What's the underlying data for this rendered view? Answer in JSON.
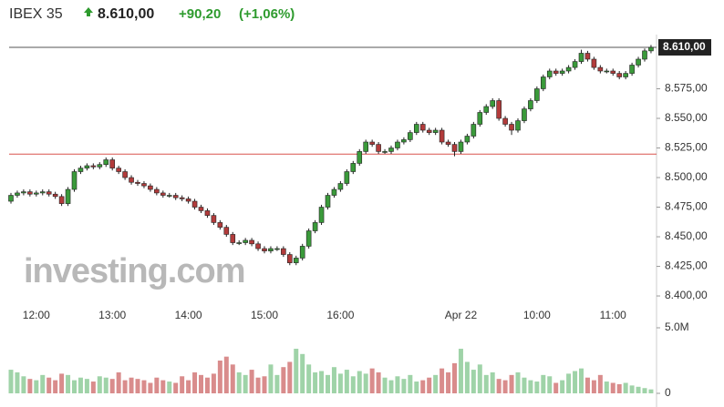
{
  "header": {
    "name": "IBEX 35",
    "change": "+90,20",
    "change_pct": "(+1,06%)"
  },
  "chart_data": {
    "type": "candlestick",
    "watermark": "investing.com",
    "up_color": "#3a9a3a",
    "down_color": "#b23b3b",
    "last_price": {
      "value": 8610,
      "label": "8.610,00"
    },
    "prev_close": 8519.8,
    "prev_close_color": "#d9534f",
    "categories": [
      null,
      null,
      null,
      null,
      "12:00",
      null,
      null,
      null,
      null,
      null,
      null,
      null,
      null,
      null,
      null,
      null,
      "13:00",
      null,
      null,
      null,
      null,
      null,
      null,
      null,
      null,
      null,
      null,
      null,
      "14:00",
      null,
      null,
      null,
      null,
      null,
      null,
      null,
      null,
      null,
      null,
      null,
      "15:00",
      null,
      null,
      null,
      null,
      null,
      null,
      null,
      null,
      null,
      null,
      null,
      "16:00",
      null,
      null,
      null,
      null,
      null,
      null,
      null,
      null,
      null,
      null,
      null,
      null,
      null,
      null,
      null,
      null,
      null,
      null,
      "Apr 22",
      null,
      null,
      null,
      null,
      null,
      null,
      null,
      null,
      null,
      null,
      null,
      "10:00",
      null,
      null,
      null,
      null,
      null,
      null,
      null,
      null,
      null,
      null,
      null,
      "11:00",
      null,
      null,
      null,
      null,
      null,
      null
    ],
    "open": [
      8480,
      8485,
      8487,
      8488,
      8486,
      8487,
      8488,
      8486,
      8484,
      8478,
      8490,
      8505,
      8508,
      8510,
      8509,
      8511,
      8515,
      8508,
      8505,
      8500,
      8496,
      8495,
      8493,
      8490,
      8487,
      8485,
      8485,
      8483,
      8482,
      8480,
      8475,
      8472,
      8468,
      8462,
      8458,
      8452,
      8445,
      8445,
      8447,
      8444,
      8440,
      8438,
      8440,
      8440,
      8435,
      8428,
      8432,
      8442,
      8455,
      8462,
      8475,
      8485,
      8490,
      8495,
      8505,
      8512,
      8522,
      8530,
      8528,
      8522,
      8522,
      8525,
      8530,
      8532,
      8538,
      8545,
      8540,
      8538,
      8540,
      8530,
      8528,
      8522,
      8530,
      8535,
      8545,
      8555,
      8560,
      8565,
      8550,
      8545,
      8540,
      8548,
      8558,
      8565,
      8575,
      8585,
      8590,
      8588,
      8590,
      8593,
      8598,
      8605,
      8600,
      8593,
      8590,
      8590,
      8588,
      8585,
      8588,
      8595,
      8600,
      8607
    ],
    "high": [
      8487,
      8489,
      8490,
      8490,
      8489,
      8490,
      8490,
      8488,
      8486,
      8492,
      8507,
      8510,
      8512,
      8512,
      8513,
      8517,
      8517,
      8510,
      8507,
      8502,
      8498,
      8497,
      8495,
      8492,
      8489,
      8487,
      8487,
      8485,
      8484,
      8482,
      8477,
      8474,
      8470,
      8464,
      8460,
      8454,
      8447,
      8449,
      8449,
      8446,
      8442,
      8442,
      8442,
      8442,
      8437,
      8434,
      8444,
      8457,
      8464,
      8477,
      8487,
      8492,
      8497,
      8507,
      8514,
      8524,
      8532,
      8532,
      8530,
      8524,
      8527,
      8532,
      8534,
      8540,
      8547,
      8547,
      8542,
      8542,
      8542,
      8532,
      8530,
      8532,
      8537,
      8547,
      8557,
      8562,
      8567,
      8567,
      8552,
      8547,
      8550,
      8560,
      8567,
      8577,
      8587,
      8592,
      8592,
      8592,
      8595,
      8600,
      8608,
      8607,
      8602,
      8595,
      8592,
      8592,
      8590,
      8590,
      8597,
      8602,
      8609,
      8612
    ],
    "low": [
      8478,
      8483,
      8485,
      8484,
      8484,
      8485,
      8484,
      8482,
      8476,
      8476,
      8488,
      8503,
      8506,
      8507,
      8507,
      8509,
      8506,
      8503,
      8498,
      8494,
      8493,
      8491,
      8488,
      8485,
      8483,
      8483,
      8481,
      8480,
      8478,
      8473,
      8470,
      8466,
      8460,
      8456,
      8450,
      8443,
      8443,
      8443,
      8442,
      8438,
      8436,
      8436,
      8438,
      8433,
      8426,
      8426,
      8430,
      8440,
      8453,
      8460,
      8473,
      8483,
      8488,
      8493,
      8503,
      8510,
      8520,
      8526,
      8520,
      8520,
      8520,
      8523,
      8528,
      8530,
      8536,
      8538,
      8536,
      8536,
      8528,
      8526,
      8518,
      8520,
      8528,
      8533,
      8543,
      8553,
      8558,
      8548,
      8543,
      8536,
      8538,
      8546,
      8556,
      8563,
      8573,
      8583,
      8586,
      8586,
      8588,
      8591,
      8596,
      8598,
      8591,
      8588,
      8588,
      8586,
      8583,
      8583,
      8586,
      8593,
      8598,
      8605
    ],
    "close": [
      8485,
      8487,
      8488,
      8486,
      8487,
      8488,
      8486,
      8484,
      8478,
      8490,
      8505,
      8508,
      8510,
      8509,
      8511,
      8515,
      8508,
      8505,
      8500,
      8496,
      8495,
      8493,
      8490,
      8487,
      8485,
      8485,
      8483,
      8482,
      8480,
      8475,
      8472,
      8468,
      8462,
      8458,
      8452,
      8445,
      8445,
      8447,
      8444,
      8440,
      8438,
      8440,
      8440,
      8435,
      8428,
      8432,
      8442,
      8455,
      8462,
      8475,
      8485,
      8490,
      8495,
      8505,
      8512,
      8522,
      8530,
      8528,
      8522,
      8522,
      8525,
      8530,
      8532,
      8538,
      8545,
      8540,
      8538,
      8540,
      8530,
      8528,
      8522,
      8530,
      8535,
      8545,
      8555,
      8560,
      8565,
      8550,
      8545,
      8540,
      8548,
      8558,
      8565,
      8575,
      8585,
      8590,
      8588,
      8590,
      8593,
      8598,
      8605,
      8600,
      8593,
      8590,
      8590,
      8588,
      8585,
      8588,
      8595,
      8600,
      8607,
      8610
    ],
    "ylim": [
      8388.5,
      8614.6
    ],
    "yticks": [
      {
        "value": 8400,
        "label": "8.400,00"
      },
      {
        "value": 8425,
        "label": "8.425,00"
      },
      {
        "value": 8450,
        "label": "8.450,00"
      },
      {
        "value": 8475,
        "label": "8.475,00"
      },
      {
        "value": 8500,
        "label": "8.500,00"
      },
      {
        "value": 8525,
        "label": "8.525,00"
      },
      {
        "value": 8550,
        "label": "8.550,00"
      },
      {
        "value": 8575,
        "label": "8.575,00"
      }
    ],
    "volume": {
      "up_color": "#9fd3a8",
      "down_color": "#d98c8c",
      "values": [
        1.8,
        1.6,
        1.3,
        1.1,
        1.0,
        1.4,
        1.2,
        1.0,
        1.5,
        1.4,
        1.0,
        1.2,
        1.1,
        0.9,
        1.3,
        1.2,
        1.1,
        1.6,
        1.0,
        1.2,
        1.1,
        1.0,
        0.8,
        1.2,
        1.0,
        0.9,
        0.8,
        1.3,
        1.0,
        1.6,
        1.4,
        1.2,
        1.5,
        2.5,
        2.8,
        2.2,
        1.6,
        1.4,
        1.8,
        1.2,
        1.3,
        2.2,
        1.4,
        2.0,
        2.4,
        3.4,
        3.0,
        2.2,
        1.6,
        1.7,
        1.4,
        2.0,
        1.5,
        1.8,
        1.3,
        1.7,
        1.5,
        1.9,
        1.6,
        1.2,
        1.0,
        1.3,
        1.1,
        1.4,
        0.9,
        1.0,
        1.2,
        1.4,
        1.9,
        1.6,
        2.3,
        3.4,
        2.4,
        1.8,
        2.2,
        1.4,
        1.6,
        1.1,
        1.0,
        1.4,
        1.6,
        1.2,
        1.0,
        0.9,
        1.4,
        1.3,
        0.8,
        1.0,
        1.5,
        1.7,
        1.9,
        1.2,
        1.0,
        1.4,
        0.9,
        0.8,
        0.7,
        0.8,
        0.6,
        0.5,
        0.4,
        0.3
      ],
      "ylim": [
        0,
        5
      ],
      "yticks": [
        {
          "value": 5,
          "label": "5.0M"
        },
        0
      ]
    }
  }
}
